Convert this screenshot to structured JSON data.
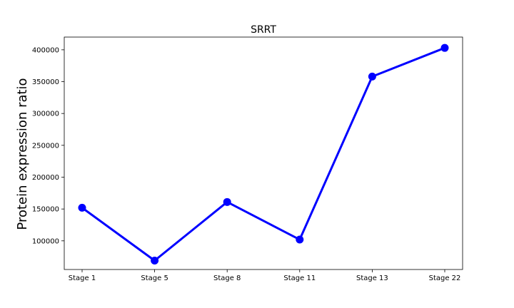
{
  "chart_data": {
    "type": "line",
    "title": "SRRT",
    "xlabel": "",
    "ylabel": "Protein expression ratio",
    "categories": [
      "Stage 1",
      "Stage 5",
      "Stage 8",
      "Stage 11",
      "Stage 13",
      "Stage 22"
    ],
    "series": [
      {
        "values": [
          152000,
          69000,
          161000,
          102000,
          358000,
          403000
        ],
        "color": "#0000ff"
      }
    ],
    "yticks": [
      100000,
      150000,
      200000,
      250000,
      300000,
      350000,
      400000
    ],
    "ylim": [
      55000,
      420000
    ],
    "grid": false,
    "legend": "none"
  }
}
